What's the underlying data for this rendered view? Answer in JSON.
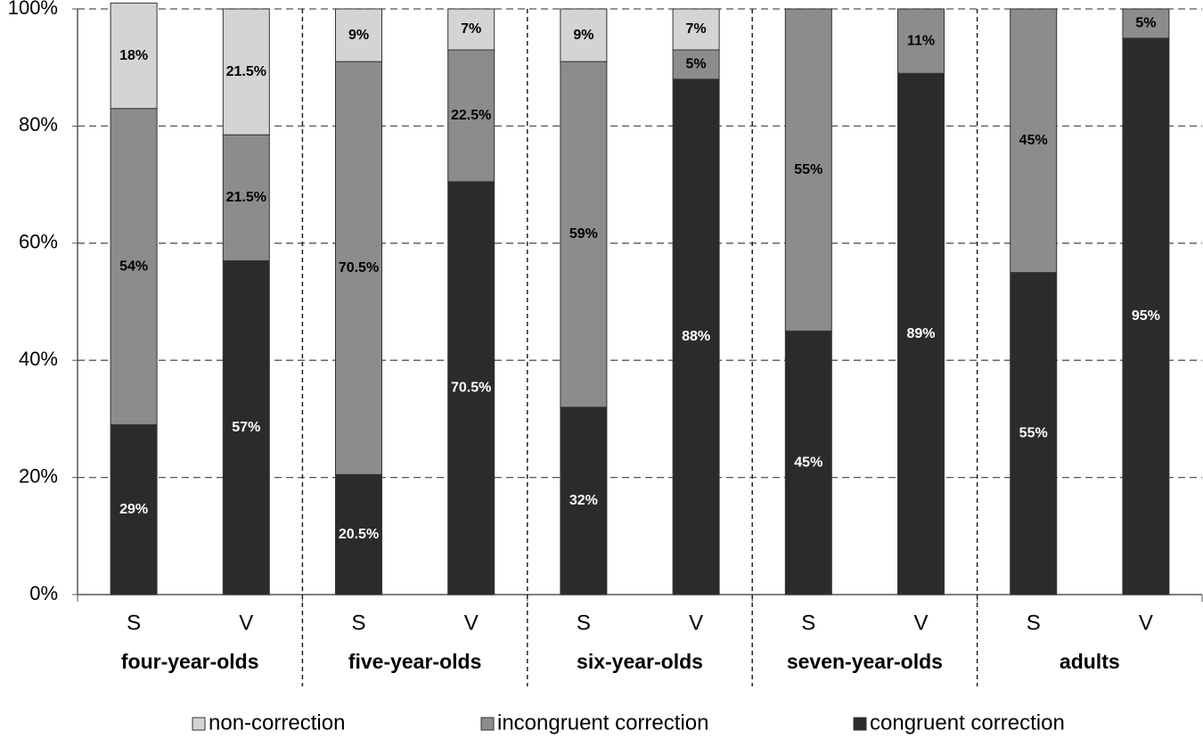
{
  "chart_data": {
    "type": "stacked-bar",
    "categories": [
      "S",
      "V",
      "S",
      "V",
      "S",
      "V",
      "S",
      "V",
      "S",
      "V"
    ],
    "groups": [
      "four-year-olds",
      "five-year-olds",
      "six-year-olds",
      "seven-year-olds",
      "adults"
    ],
    "series": [
      {
        "name": "congruent correction",
        "color": "#2b2b2b",
        "label_color": "#ffffff",
        "values": [
          29,
          57,
          20.5,
          70.5,
          32,
          88,
          45,
          89,
          55,
          95
        ],
        "value_labels": [
          "29%",
          "57%",
          "20.5%",
          "70.5%",
          "32%",
          "88%",
          "45%",
          "89%",
          "55%",
          "95%"
        ]
      },
      {
        "name": "incongruent correction",
        "color": "#8c8c8c",
        "label_color": "#000000",
        "values": [
          54,
          21.5,
          70.5,
          22.5,
          59,
          5,
          55,
          11,
          45,
          5
        ],
        "value_labels": [
          "54%",
          "21.5%",
          "70.5%",
          "22.5%",
          "59%",
          "5%",
          "55%",
          "11%",
          "45%",
          "5%"
        ]
      },
      {
        "name": "non-correction",
        "color": "#d4d4d4",
        "label_color": "#000000",
        "values": [
          18,
          21.5,
          9,
          7,
          9,
          7,
          null,
          null,
          null,
          null
        ],
        "value_labels": [
          "18%",
          "21.5%",
          "9%",
          "7%",
          "9%",
          "7%",
          null,
          null,
          null,
          null
        ]
      }
    ],
    "ylim": [
      0,
      100
    ],
    "yticks": [
      {
        "value": 0,
        "label": "0%"
      },
      {
        "value": 20,
        "label": "20%"
      },
      {
        "value": 40,
        "label": "40%"
      },
      {
        "value": 60,
        "label": "60%"
      },
      {
        "value": 80,
        "label": "80%"
      },
      {
        "value": 100,
        "label": "100%"
      }
    ],
    "grid": true,
    "legend": "bottom"
  }
}
